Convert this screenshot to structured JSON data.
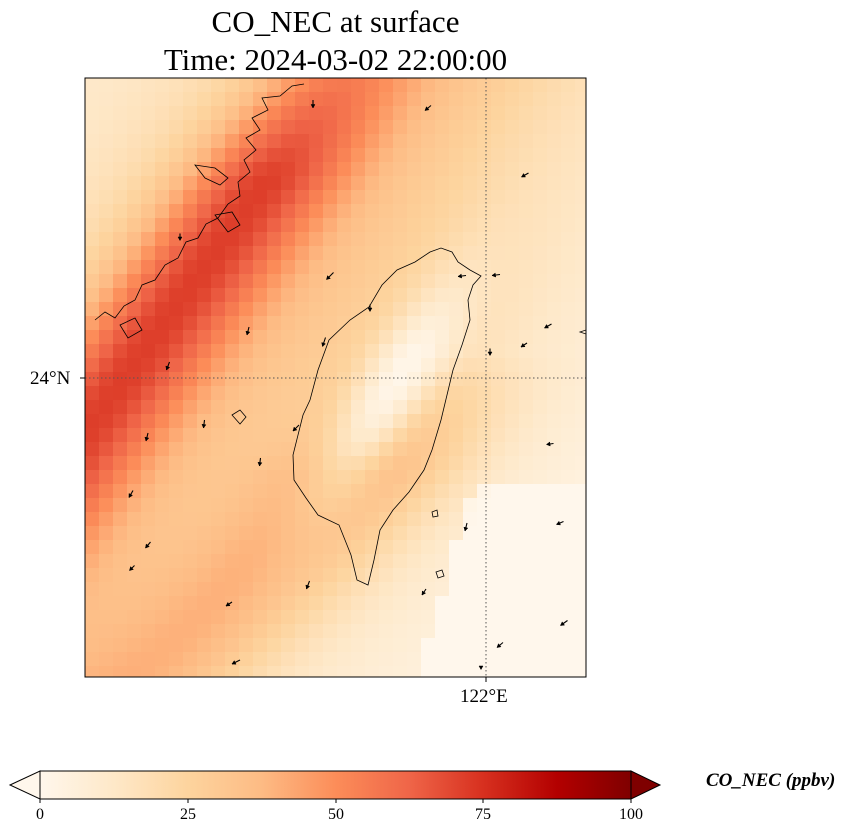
{
  "title": {
    "line1": "CO_NEC at surface",
    "line2": "Time: 2024-03-02 22:00:00"
  },
  "map": {
    "lat_label": "24°N",
    "lon_label": "122°E",
    "grid_style": "dotted",
    "coastline_color": "#000000"
  },
  "colorbar": {
    "label": "CO_NEC (ppbv)",
    "ticks": [
      "0",
      "25",
      "50",
      "75",
      "100"
    ],
    "min": 0,
    "max": 100,
    "colormap": [
      "#fff7ec",
      "#fee8c8",
      "#fdd49e",
      "#fdbb84",
      "#fc8d59",
      "#ef6548",
      "#d7301f",
      "#b30000",
      "#7f0000"
    ],
    "extend": "both"
  }
}
